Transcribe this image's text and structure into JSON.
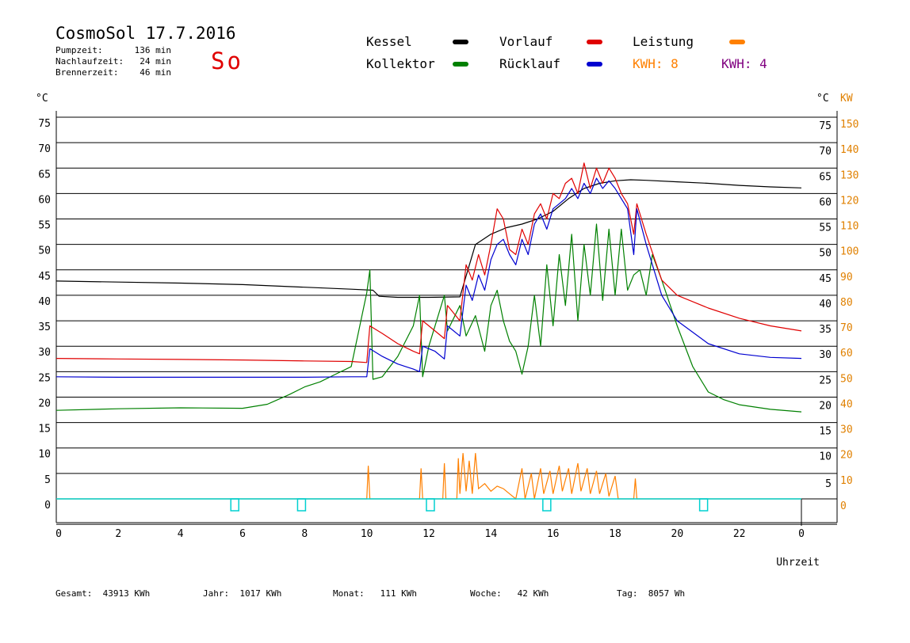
{
  "header": {
    "title": "CosmoSol 17.7.2016",
    "day": "So",
    "stats": [
      {
        "label": "Pumpzeit:",
        "value": "136 min"
      },
      {
        "label": "Nachlaufzeit:",
        "value": "24 min"
      },
      {
        "label": "Brennerzeit:",
        "value": "46 min"
      }
    ]
  },
  "legend": {
    "kessel": {
      "label": "Kessel",
      "color": "#000000"
    },
    "kollektor": {
      "label": "Kollektor",
      "color": "#008000"
    },
    "vorlauf": {
      "label": "Vorlauf",
      "color": "#e00000"
    },
    "ruecklauf": {
      "label": "Rücklauf",
      "color": "#0000d0"
    },
    "leistung": {
      "label": "Leistung",
      "color": "#ff8000"
    },
    "kwh1": {
      "label": "KWH: 8",
      "color": "#ff8000"
    },
    "kwh2": {
      "label": "KWH: 4",
      "color": "#800080"
    }
  },
  "footer": {
    "gesamt_label": "Gesamt:",
    "gesamt_value": "43913 KWh",
    "jahr_label": "Jahr:",
    "jahr_value": "1017 KWh",
    "monat_label": "Monat:",
    "monat_value": "111 KWh",
    "woche_label": "Woche:",
    "woche_value": "42 KWh",
    "tag_label": "Tag:",
    "tag_value": "8057 Wh"
  },
  "chart_data": {
    "type": "line",
    "xlabel": "Uhrzeit",
    "ylabel_left": "°C",
    "ylabel_right_temp": "°C",
    "ylabel_right_power": "KW",
    "xlim": [
      0,
      24
    ],
    "ylim": [
      0,
      75
    ],
    "x_ticks": [
      "0",
      "2",
      "4",
      "6",
      "8",
      "10",
      "12",
      "14",
      "16",
      "18",
      "20",
      "22",
      "0"
    ],
    "y_ticks_left": [
      "0",
      "5",
      "10",
      "15",
      "20",
      "25",
      "30",
      "35",
      "40",
      "45",
      "50",
      "55",
      "60",
      "65",
      "70",
      "75"
    ],
    "y_ticks_right": [
      "5",
      "10",
      "15",
      "20",
      "25",
      "30",
      "35",
      "40",
      "45",
      "50",
      "55",
      "60",
      "65",
      "70",
      "75"
    ],
    "y2_ticks": [
      "0",
      "10",
      "20",
      "30",
      "40",
      "50",
      "60",
      "70",
      "80",
      "90",
      "100",
      "110",
      "120",
      "130",
      "140",
      "150"
    ],
    "grid": true,
    "series": [
      {
        "name": "Kessel",
        "color": "#000000",
        "points": [
          [
            0,
            42.8
          ],
          [
            2,
            42.6
          ],
          [
            4,
            42.4
          ],
          [
            6,
            42.1
          ],
          [
            8,
            41.6
          ],
          [
            9.5,
            41.2
          ],
          [
            10.2,
            41.0
          ],
          [
            10.4,
            39.8
          ],
          [
            11,
            39.6
          ],
          [
            12,
            39.6
          ],
          [
            13,
            39.7
          ],
          [
            13.5,
            50
          ],
          [
            14,
            52
          ],
          [
            14.5,
            53.3
          ],
          [
            15,
            54
          ],
          [
            15.5,
            55
          ],
          [
            16,
            56.5
          ],
          [
            16.5,
            59
          ],
          [
            17,
            61
          ],
          [
            17.5,
            62
          ],
          [
            18,
            62.5
          ],
          [
            18.5,
            62.7
          ],
          [
            19,
            62.6
          ],
          [
            20,
            62.3
          ],
          [
            21,
            62
          ],
          [
            22,
            61.6
          ],
          [
            23,
            61.3
          ],
          [
            24,
            61.1
          ]
        ]
      },
      {
        "name": "Kollektor",
        "color": "#008000",
        "points": [
          [
            0,
            17.4
          ],
          [
            2,
            17.7
          ],
          [
            4,
            17.9
          ],
          [
            6,
            17.8
          ],
          [
            6.8,
            18.6
          ],
          [
            7.5,
            20.5
          ],
          [
            8,
            22
          ],
          [
            8.5,
            23
          ],
          [
            9,
            24.5
          ],
          [
            9.5,
            26
          ],
          [
            10,
            40.5
          ],
          [
            10.1,
            45
          ],
          [
            10.2,
            23.5
          ],
          [
            10.5,
            24
          ],
          [
            11,
            28
          ],
          [
            11.5,
            34
          ],
          [
            11.7,
            40
          ],
          [
            11.8,
            24
          ],
          [
            12,
            30
          ],
          [
            12.5,
            40
          ],
          [
            12.6,
            33
          ],
          [
            13,
            38
          ],
          [
            13.2,
            32
          ],
          [
            13.5,
            36
          ],
          [
            13.8,
            29
          ],
          [
            14,
            38
          ],
          [
            14.2,
            41
          ],
          [
            14.4,
            35
          ],
          [
            14.6,
            31
          ],
          [
            14.8,
            29
          ],
          [
            15,
            24.5
          ],
          [
            15.2,
            30
          ],
          [
            15.4,
            40
          ],
          [
            15.6,
            30
          ],
          [
            15.8,
            46
          ],
          [
            16,
            34
          ],
          [
            16.2,
            48
          ],
          [
            16.4,
            38
          ],
          [
            16.6,
            52
          ],
          [
            16.8,
            35
          ],
          [
            17,
            50
          ],
          [
            17.2,
            40
          ],
          [
            17.4,
            54
          ],
          [
            17.6,
            39
          ],
          [
            17.8,
            53
          ],
          [
            18,
            40
          ],
          [
            18.2,
            53
          ],
          [
            18.4,
            41
          ],
          [
            18.6,
            44
          ],
          [
            18.8,
            45
          ],
          [
            19,
            40
          ],
          [
            19.2,
            48
          ],
          [
            19.5,
            43
          ],
          [
            20,
            34
          ],
          [
            20.5,
            26
          ],
          [
            21,
            21
          ],
          [
            21.5,
            19.5
          ],
          [
            22,
            18.5
          ],
          [
            23,
            17.6
          ],
          [
            24,
            17.1
          ]
        ]
      },
      {
        "name": "Vorlauf",
        "color": "#e00000",
        "points": [
          [
            0,
            27.6
          ],
          [
            2,
            27.5
          ],
          [
            4,
            27.4
          ],
          [
            6,
            27.3
          ],
          [
            8,
            27.1
          ],
          [
            9.5,
            27.0
          ],
          [
            10,
            26.8
          ],
          [
            10.1,
            34
          ],
          [
            10.5,
            32.5
          ],
          [
            11,
            30.5
          ],
          [
            11.5,
            29
          ],
          [
            11.7,
            28.5
          ],
          [
            11.8,
            35
          ],
          [
            12.2,
            33
          ],
          [
            12.5,
            31.5
          ],
          [
            12.6,
            38
          ],
          [
            13,
            35
          ],
          [
            13.2,
            46
          ],
          [
            13.4,
            43
          ],
          [
            13.6,
            48
          ],
          [
            13.8,
            44
          ],
          [
            14,
            50
          ],
          [
            14.2,
            57
          ],
          [
            14.4,
            55
          ],
          [
            14.6,
            49
          ],
          [
            14.8,
            48
          ],
          [
            15,
            53
          ],
          [
            15.2,
            50
          ],
          [
            15.4,
            56
          ],
          [
            15.6,
            58
          ],
          [
            15.8,
            55
          ],
          [
            16,
            60
          ],
          [
            16.2,
            59
          ],
          [
            16.4,
            62
          ],
          [
            16.6,
            63
          ],
          [
            16.8,
            60
          ],
          [
            17,
            66
          ],
          [
            17.2,
            61
          ],
          [
            17.4,
            65
          ],
          [
            17.6,
            62
          ],
          [
            17.8,
            65
          ],
          [
            18,
            63
          ],
          [
            18.2,
            60
          ],
          [
            18.4,
            58
          ],
          [
            18.6,
            52
          ],
          [
            18.7,
            58
          ],
          [
            19,
            52
          ],
          [
            19.5,
            43
          ],
          [
            20,
            40
          ],
          [
            21,
            37.5
          ],
          [
            22,
            35.5
          ],
          [
            23,
            34
          ],
          [
            24,
            33
          ]
        ]
      },
      {
        "name": "Rücklauf",
        "color": "#0000d0",
        "points": [
          [
            0,
            24.0
          ],
          [
            2,
            23.9
          ],
          [
            4,
            23.9
          ],
          [
            6,
            23.9
          ],
          [
            8,
            23.9
          ],
          [
            9.5,
            24.0
          ],
          [
            10,
            24.0
          ],
          [
            10.1,
            29.5
          ],
          [
            10.5,
            28
          ],
          [
            11,
            26.5
          ],
          [
            11.5,
            25.5
          ],
          [
            11.7,
            25
          ],
          [
            11.8,
            30
          ],
          [
            12.2,
            29
          ],
          [
            12.5,
            27.5
          ],
          [
            12.6,
            34
          ],
          [
            13,
            32
          ],
          [
            13.2,
            42
          ],
          [
            13.4,
            39
          ],
          [
            13.6,
            44
          ],
          [
            13.8,
            41
          ],
          [
            14,
            47
          ],
          [
            14.2,
            50
          ],
          [
            14.4,
            51
          ],
          [
            14.6,
            48
          ],
          [
            14.8,
            46
          ],
          [
            15,
            51
          ],
          [
            15.2,
            48
          ],
          [
            15.4,
            54
          ],
          [
            15.6,
            56
          ],
          [
            15.8,
            53
          ],
          [
            16,
            57
          ],
          [
            16.2,
            58
          ],
          [
            16.4,
            59
          ],
          [
            16.6,
            61
          ],
          [
            16.8,
            59
          ],
          [
            17,
            62
          ],
          [
            17.2,
            60
          ],
          [
            17.4,
            63
          ],
          [
            17.6,
            61
          ],
          [
            17.8,
            62.5
          ],
          [
            18,
            61
          ],
          [
            18.2,
            59
          ],
          [
            18.4,
            57
          ],
          [
            18.6,
            48
          ],
          [
            18.7,
            57
          ],
          [
            19,
            50
          ],
          [
            19.5,
            40
          ],
          [
            20,
            35
          ],
          [
            21,
            30.5
          ],
          [
            22,
            28.5
          ],
          [
            23,
            27.8
          ],
          [
            24,
            27.6
          ]
        ]
      }
    ],
    "power_series": {
      "name": "Leistung",
      "color": "#ff8000",
      "points": [
        [
          0,
          0
        ],
        [
          10,
          0
        ],
        [
          10.05,
          13
        ],
        [
          10.1,
          0
        ],
        [
          11.7,
          0
        ],
        [
          11.75,
          12
        ],
        [
          11.8,
          0
        ],
        [
          12.45,
          0
        ],
        [
          12.5,
          14
        ],
        [
          12.55,
          0
        ],
        [
          12.9,
          0
        ],
        [
          12.95,
          16
        ],
        [
          13.0,
          2
        ],
        [
          13.1,
          18
        ],
        [
          13.2,
          3
        ],
        [
          13.3,
          15
        ],
        [
          13.4,
          2
        ],
        [
          13.5,
          18
        ],
        [
          13.6,
          4
        ],
        [
          13.8,
          6
        ],
        [
          14,
          3
        ],
        [
          14.2,
          5
        ],
        [
          14.4,
          4
        ],
        [
          14.6,
          2
        ],
        [
          14.8,
          0
        ],
        [
          15,
          12
        ],
        [
          15.1,
          0
        ],
        [
          15.3,
          10
        ],
        [
          15.4,
          0
        ],
        [
          15.6,
          12
        ],
        [
          15.7,
          2
        ],
        [
          15.9,
          11
        ],
        [
          16,
          2
        ],
        [
          16.2,
          13
        ],
        [
          16.3,
          3
        ],
        [
          16.5,
          12
        ],
        [
          16.6,
          2
        ],
        [
          16.8,
          14
        ],
        [
          16.9,
          3
        ],
        [
          17.1,
          12
        ],
        [
          17.2,
          2
        ],
        [
          17.4,
          11
        ],
        [
          17.5,
          2
        ],
        [
          17.7,
          10
        ],
        [
          17.8,
          1
        ],
        [
          18.0,
          9
        ],
        [
          18.1,
          0
        ],
        [
          18.6,
          0
        ],
        [
          18.65,
          8
        ],
        [
          18.7,
          0
        ],
        [
          24,
          0
        ]
      ]
    },
    "pump_markers": [
      5.75,
      7.9,
      12.05,
      15.8,
      20.85
    ]
  }
}
